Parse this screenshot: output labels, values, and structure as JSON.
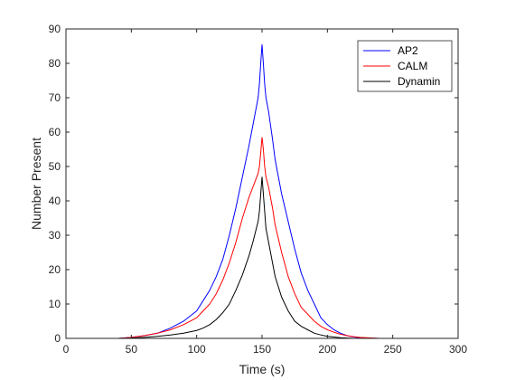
{
  "chart_data": {
    "type": "line",
    "title": "",
    "xlabel": "Time (s)",
    "ylabel": "Number Present",
    "xlim": [
      0,
      300
    ],
    "ylim": [
      0,
      90
    ],
    "xticks": [
      0,
      50,
      100,
      150,
      200,
      250,
      300
    ],
    "yticks": [
      0,
      10,
      20,
      30,
      40,
      50,
      60,
      70,
      80,
      90
    ],
    "grid": false,
    "legend_position": "top-right",
    "series": [
      {
        "name": "AP2",
        "color": "#0000ff",
        "x": [
          0,
          20,
          40,
          50,
          60,
          70,
          80,
          90,
          100,
          105,
          110,
          115,
          120,
          125,
          130,
          135,
          140,
          143,
          145,
          147,
          148,
          149,
          150,
          151,
          152,
          153,
          155,
          158,
          160,
          165,
          170,
          175,
          180,
          185,
          190,
          195,
          200,
          205,
          210,
          215,
          220,
          225,
          230,
          240,
          250,
          260,
          280,
          300
        ],
        "y": [
          0,
          0,
          0,
          0.3,
          0.8,
          1.5,
          3,
          5,
          8,
          11,
          14,
          18,
          23,
          30,
          38,
          47,
          56,
          62,
          66,
          70,
          74,
          80,
          85.5,
          80,
          74,
          70,
          66,
          58,
          52,
          42,
          34,
          26,
          19,
          14,
          10,
          6,
          4,
          2.5,
          1.5,
          0.8,
          0.4,
          0.2,
          0.1,
          0,
          0,
          0,
          0,
          0
        ]
      },
      {
        "name": "CALM",
        "color": "#ff0000",
        "x": [
          0,
          20,
          40,
          50,
          60,
          70,
          80,
          90,
          100,
          105,
          110,
          115,
          120,
          125,
          130,
          135,
          140,
          143,
          145,
          147,
          148,
          149,
          150,
          151,
          152,
          153,
          155,
          158,
          160,
          165,
          170,
          175,
          180,
          185,
          190,
          195,
          200,
          205,
          210,
          215,
          220,
          225,
          230,
          240,
          250,
          260,
          280,
          300
        ],
        "y": [
          0,
          0,
          0,
          0.3,
          0.8,
          1.5,
          2.5,
          4,
          6,
          8,
          10,
          13,
          17,
          22,
          28,
          35,
          41,
          44,
          46,
          48,
          50,
          54,
          58.5,
          55,
          50,
          47,
          44,
          38,
          33,
          25,
          18,
          13,
          9,
          7,
          5,
          3.5,
          2.5,
          1.8,
          1.2,
          0.8,
          0.5,
          0.3,
          0.2,
          0,
          0,
          0,
          0,
          0
        ]
      },
      {
        "name": "Dynamin",
        "color": "#000000",
        "x": [
          0,
          20,
          40,
          50,
          60,
          70,
          80,
          90,
          100,
          105,
          110,
          115,
          120,
          125,
          130,
          135,
          140,
          143,
          145,
          147,
          148,
          149,
          150,
          151,
          152,
          153,
          155,
          158,
          160,
          165,
          170,
          175,
          180,
          185,
          190,
          195,
          200,
          205,
          210,
          215,
          220,
          225,
          230,
          240,
          250,
          260,
          280,
          300
        ],
        "y": [
          0,
          0,
          0,
          0.1,
          0.3,
          0.6,
          1,
          1.5,
          2.3,
          3,
          4,
          5.5,
          7.5,
          10,
          14,
          18.5,
          24,
          28,
          31,
          34,
          37,
          42,
          47,
          42,
          37,
          32,
          28,
          22,
          18,
          12,
          8,
          5,
          3.5,
          2.5,
          1.5,
          1,
          0.6,
          0.4,
          0.2,
          0.1,
          0,
          0,
          0,
          0,
          0,
          0,
          0,
          0
        ]
      }
    ]
  }
}
